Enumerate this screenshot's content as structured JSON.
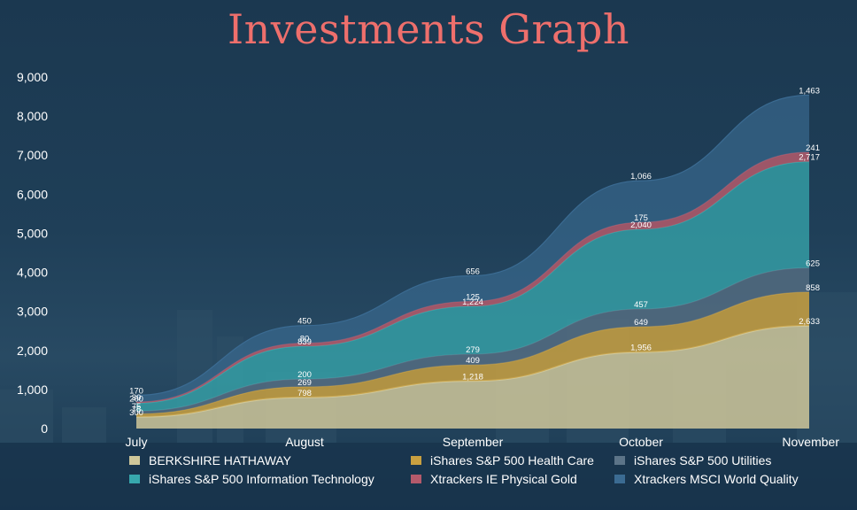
{
  "title": "Investments Graph",
  "colors": {
    "background": "#1d3a52",
    "title": "#ee6f6c",
    "text": "#ffffff"
  },
  "chart_data": {
    "type": "area",
    "stacked": true,
    "curve": "smooth",
    "categories": [
      "July",
      "August",
      "September",
      "October",
      "November"
    ],
    "ylim": [
      0,
      9000
    ],
    "yticks": [
      0,
      1000,
      2000,
      3000,
      4000,
      5000,
      6000,
      7000,
      8000,
      9000
    ],
    "ytick_labels": [
      "0",
      "1,000",
      "2,000",
      "3,000",
      "4,000",
      "5,000",
      "6,000",
      "7,000",
      "8,000",
      "9,000"
    ],
    "grid": false,
    "legend_position": "bottom",
    "series": [
      {
        "name": "BERKSHIRE HATHAWAY",
        "values": [
          300,
          798,
          1218,
          1956,
          2633
        ],
        "labels": [
          "300",
          "798",
          "1,218",
          "1,956",
          "2,633"
        ],
        "color": "#cfc79a"
      },
      {
        "name": "iShares S&P 500 Health Care",
        "values": [
          75,
          269,
          409,
          649,
          858
        ],
        "labels": [
          "75",
          "269",
          "409",
          "649",
          "858"
        ],
        "color": "#c9a040"
      },
      {
        "name": "iShares S&P 500 Utilities",
        "values": [
          75,
          200,
          279,
          457,
          625
        ],
        "labels": [
          "75",
          "200",
          "279",
          "457",
          "625"
        ],
        "color": "#5c7488"
      },
      {
        "name": "iShares S&P 500 Information Technology",
        "values": [
          200,
          839,
          1224,
          2040,
          2717
        ],
        "labels": [
          "200",
          "839",
          "1,224",
          "2,040",
          "2,717"
        ],
        "color": "#37a8ad"
      },
      {
        "name": "Xtrackers IE Physical Gold",
        "values": [
          30,
          80,
          125,
          175,
          241
        ],
        "labels": [
          "30",
          "80",
          "125",
          "175",
          "241"
        ],
        "color": "#b45a6b"
      },
      {
        "name": "Xtrackers MSCI World Quality",
        "values": [
          170,
          450,
          656,
          1066,
          1463
        ],
        "labels": [
          "170",
          "450",
          "656",
          "1,066",
          "1,463"
        ],
        "color": "#3b6b92"
      }
    ]
  }
}
